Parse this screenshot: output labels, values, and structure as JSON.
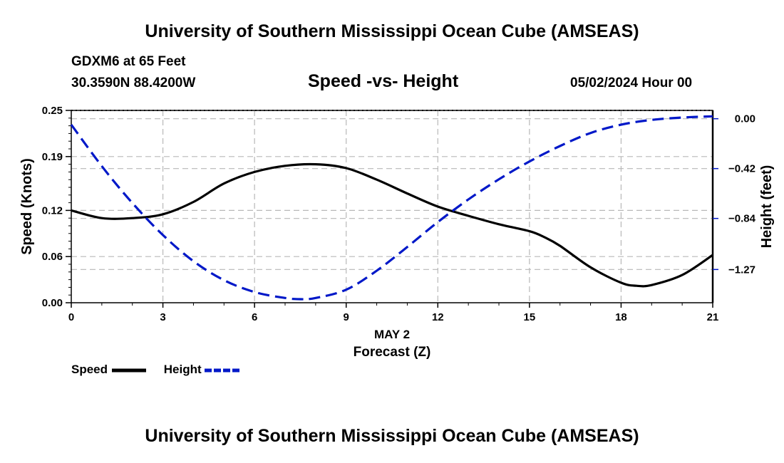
{
  "header": {
    "title": "University of Southern Mississippi Ocean Cube (AMSEAS)",
    "station": "GDXM6 at 65 Feet",
    "coordinates": "30.3590N  88.4200W",
    "subtitle": "Speed -vs- Height",
    "datetime": "05/02/2024 Hour 00"
  },
  "footer": {
    "title": "University of Southern Mississippi Ocean Cube (AMSEAS)"
  },
  "chart_data": {
    "type": "line",
    "title": "Speed -vs- Height",
    "xlabel_date": "MAY 2",
    "xlabel": "Forecast (Z)",
    "ylabel": "Speed (Knots)",
    "y2label": "Height (feet)",
    "xlim": [
      0,
      21
    ],
    "ylim": [
      0,
      0.25
    ],
    "y2lim": [
      -1.55,
      0.07
    ],
    "xticks": [
      0,
      3,
      6,
      9,
      12,
      15,
      18,
      21
    ],
    "xtick_labels": [
      "0",
      "3",
      "6",
      "9",
      "12",
      "15",
      "18",
      "21"
    ],
    "yticks": [
      0.0,
      0.06,
      0.12,
      0.19,
      0.25
    ],
    "ytick_labels": [
      "0.00",
      "0.06",
      "0.12",
      "0.19",
      "0.25"
    ],
    "y2ticks": [
      0.0,
      -0.42,
      -0.84,
      -1.27
    ],
    "y2tick_labels": [
      "0.00",
      "−0.42",
      "−0.84",
      "−1.27"
    ],
    "grid": true,
    "series": [
      {
        "name": "Speed",
        "axis": "left",
        "color": "#000000",
        "style": "solid",
        "x": [
          0,
          1,
          2,
          3,
          4,
          5,
          6,
          7,
          8,
          9,
          10,
          11,
          12,
          13,
          14,
          15,
          15.5,
          16,
          17,
          18,
          18.5,
          19,
          20,
          21
        ],
        "values": [
          0.12,
          0.11,
          0.11,
          0.115,
          0.131,
          0.155,
          0.17,
          0.178,
          0.18,
          0.175,
          0.16,
          0.142,
          0.125,
          0.113,
          0.102,
          0.093,
          0.085,
          0.074,
          0.046,
          0.026,
          0.022,
          0.023,
          0.036,
          0.062
        ]
      },
      {
        "name": "Height",
        "axis": "right",
        "color": "#0018c8",
        "style": "dashed",
        "x": [
          0,
          1,
          2,
          3,
          4,
          5,
          6,
          7,
          7.5,
          8,
          9,
          10,
          11,
          12,
          13,
          14,
          15,
          16,
          17,
          18,
          19,
          20,
          21
        ],
        "values": [
          -0.05,
          -0.4,
          -0.71,
          -0.98,
          -1.2,
          -1.36,
          -1.46,
          -1.51,
          -1.52,
          -1.51,
          -1.44,
          -1.28,
          -1.08,
          -0.87,
          -0.68,
          -0.51,
          -0.36,
          -0.23,
          -0.12,
          -0.05,
          -0.01,
          0.01,
          0.02
        ]
      }
    ],
    "legend": [
      {
        "label": "Speed",
        "color": "#000000",
        "style": "solid"
      },
      {
        "label": "Height",
        "color": "#0018c8",
        "style": "dashed"
      }
    ]
  }
}
